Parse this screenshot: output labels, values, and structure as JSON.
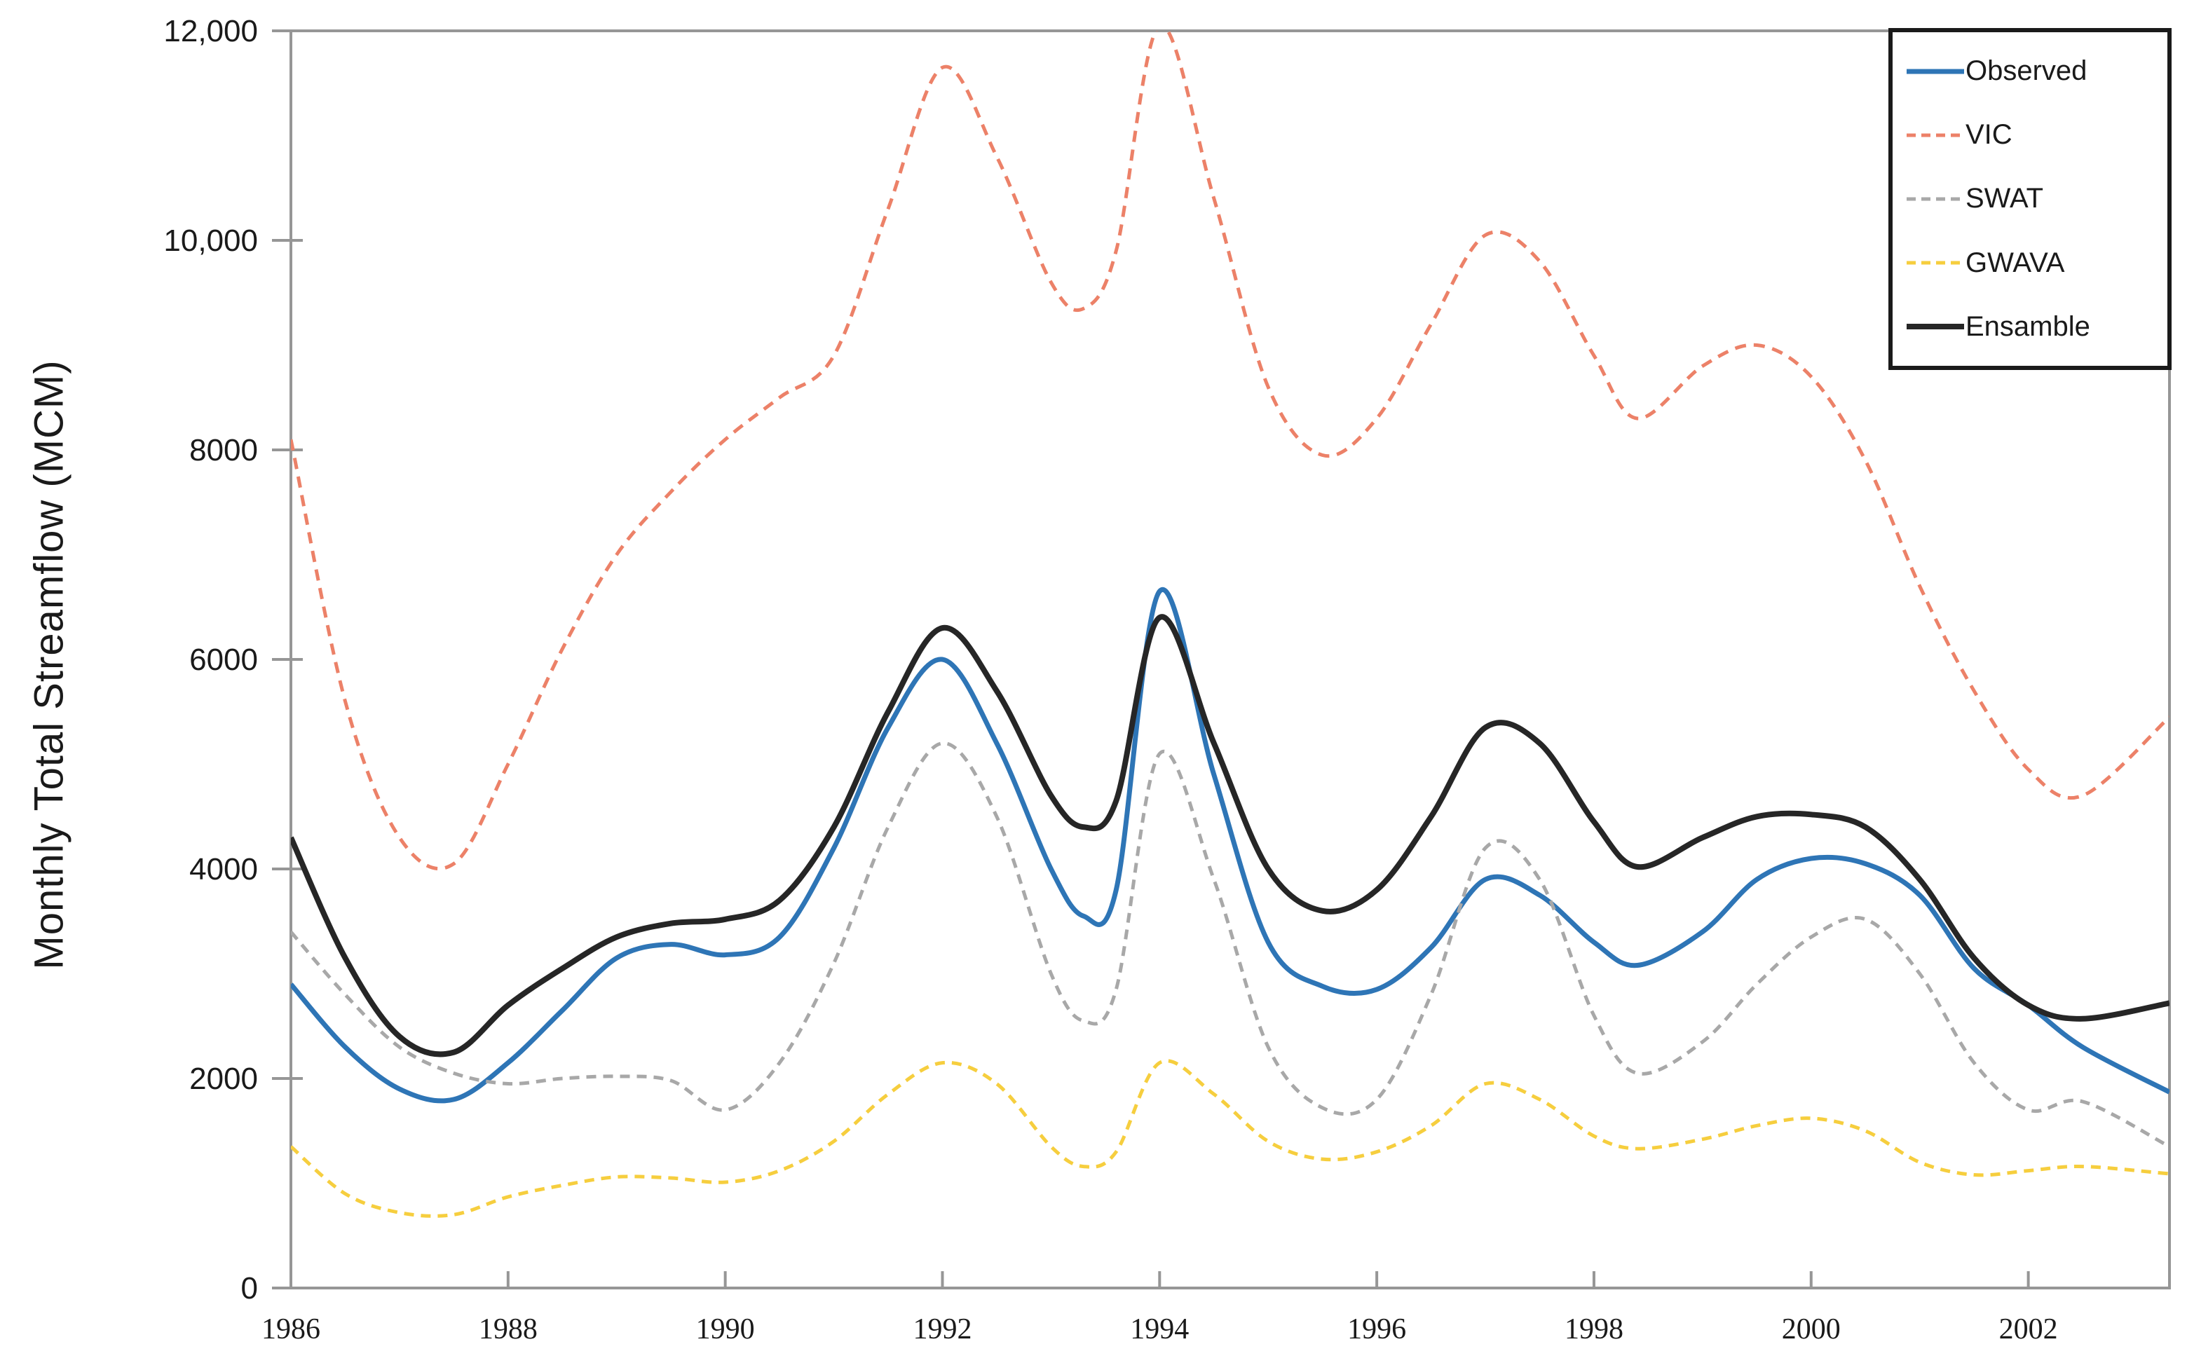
{
  "page": {
    "background": "#ffffff",
    "axis_color": "#969696",
    "tick_label_color": "#1a1a1a",
    "legend_border_color": "#1a1a1a"
  },
  "chart_data": {
    "type": "line",
    "title": "",
    "xlabel": "",
    "ylabel": "Monthly Total Streamflow (MCM)",
    "xlim": [
      1986,
      2003.3
    ],
    "ylim": [
      0,
      12000
    ],
    "grid": false,
    "legend_position": "top-right",
    "x": [
      1986,
      1986.5,
      1987,
      1987.5,
      1988,
      1988.5,
      1989,
      1989.5,
      1990,
      1990.5,
      1991,
      1991.5,
      1992,
      1992.5,
      1993,
      1993.3,
      1993.6,
      1994,
      1994.5,
      1995,
      1995.5,
      1996,
      1996.5,
      1997,
      1997.5,
      1998,
      1998.4,
      1999,
      1999.5,
      2000,
      2000.5,
      2001,
      2001.5,
      2002,
      2002.5,
      2003.3
    ],
    "series": [
      {
        "name": "Observed",
        "color": "#2E75B6",
        "style": "solid",
        "width": 7,
        "dash": "",
        "values": [
          2900,
          2300,
          1900,
          1800,
          2150,
          2650,
          3150,
          3280,
          3180,
          3350,
          4200,
          5350,
          6000,
          5200,
          4000,
          3550,
          3800,
          6650,
          4900,
          3300,
          2880,
          2850,
          3250,
          3900,
          3750,
          3300,
          3080,
          3400,
          3900,
          4100,
          4050,
          3750,
          3050,
          2700,
          2300,
          1870
        ]
      },
      {
        "name": "VIC",
        "color": "#EC8168",
        "style": "dashed",
        "width": 5,
        "dash": "16 11",
        "values": [
          8100,
          5600,
          4300,
          4050,
          5000,
          6100,
          7000,
          7600,
          8100,
          8500,
          8900,
          10300,
          11650,
          10800,
          9600,
          9350,
          9900,
          12050,
          10400,
          8600,
          7950,
          8300,
          9200,
          10050,
          9800,
          8900,
          8300,
          8800,
          9000,
          8700,
          7900,
          6700,
          5700,
          4950,
          4700,
          5450
        ]
      },
      {
        "name": "SWAT",
        "color": "#A8A8A8",
        "style": "dashed",
        "width": 5,
        "dash": "14 10",
        "values": [
          3400,
          2800,
          2300,
          2050,
          1950,
          2000,
          2020,
          1980,
          1700,
          2150,
          3100,
          4400,
          5200,
          4500,
          3000,
          2550,
          2850,
          5100,
          3900,
          2300,
          1720,
          1800,
          2800,
          4200,
          3900,
          2600,
          2050,
          2350,
          2900,
          3350,
          3520,
          3000,
          2150,
          1700,
          1780,
          1350
        ]
      },
      {
        "name": "GWAVA",
        "color": "#F6CE3E",
        "style": "dashed",
        "width": 5,
        "dash": "14 10",
        "values": [
          1350,
          900,
          720,
          700,
          870,
          980,
          1060,
          1050,
          1010,
          1120,
          1400,
          1850,
          2150,
          1950,
          1350,
          1160,
          1300,
          2150,
          1850,
          1400,
          1230,
          1300,
          1550,
          1950,
          1800,
          1450,
          1330,
          1420,
          1550,
          1620,
          1500,
          1200,
          1080,
          1120,
          1160,
          1090
        ]
      },
      {
        "name": "Ensamble",
        "color": "#262626",
        "style": "solid",
        "width": 8,
        "dash": "",
        "values": [
          4300,
          3150,
          2400,
          2250,
          2700,
          3050,
          3350,
          3480,
          3520,
          3700,
          4400,
          5500,
          6300,
          5700,
          4700,
          4400,
          4650,
          6400,
          5200,
          4000,
          3600,
          3800,
          4500,
          5350,
          5200,
          4450,
          4020,
          4300,
          4500,
          4520,
          4400,
          3900,
          3150,
          2700,
          2570,
          2720
        ]
      }
    ],
    "yticks": [
      {
        "value": 0,
        "label": "0"
      },
      {
        "value": 2000,
        "label": "2000"
      },
      {
        "value": 4000,
        "label": "4000"
      },
      {
        "value": 6000,
        "label": "6000"
      },
      {
        "value": 8000,
        "label": "8000"
      },
      {
        "value": 10000,
        "label": "10,000"
      },
      {
        "value": 12000,
        "label": "12,000"
      }
    ],
    "xticks": [
      {
        "value": 1986,
        "label": "1986"
      },
      {
        "value": 1988,
        "label": "1988"
      },
      {
        "value": 1990,
        "label": "1990"
      },
      {
        "value": 1992,
        "label": "1992"
      },
      {
        "value": 1994,
        "label": "1994"
      },
      {
        "value": 1996,
        "label": "1996"
      },
      {
        "value": 1998,
        "label": "1998"
      },
      {
        "value": 2000,
        "label": "2000"
      },
      {
        "value": 2002,
        "label": "2002"
      }
    ]
  }
}
